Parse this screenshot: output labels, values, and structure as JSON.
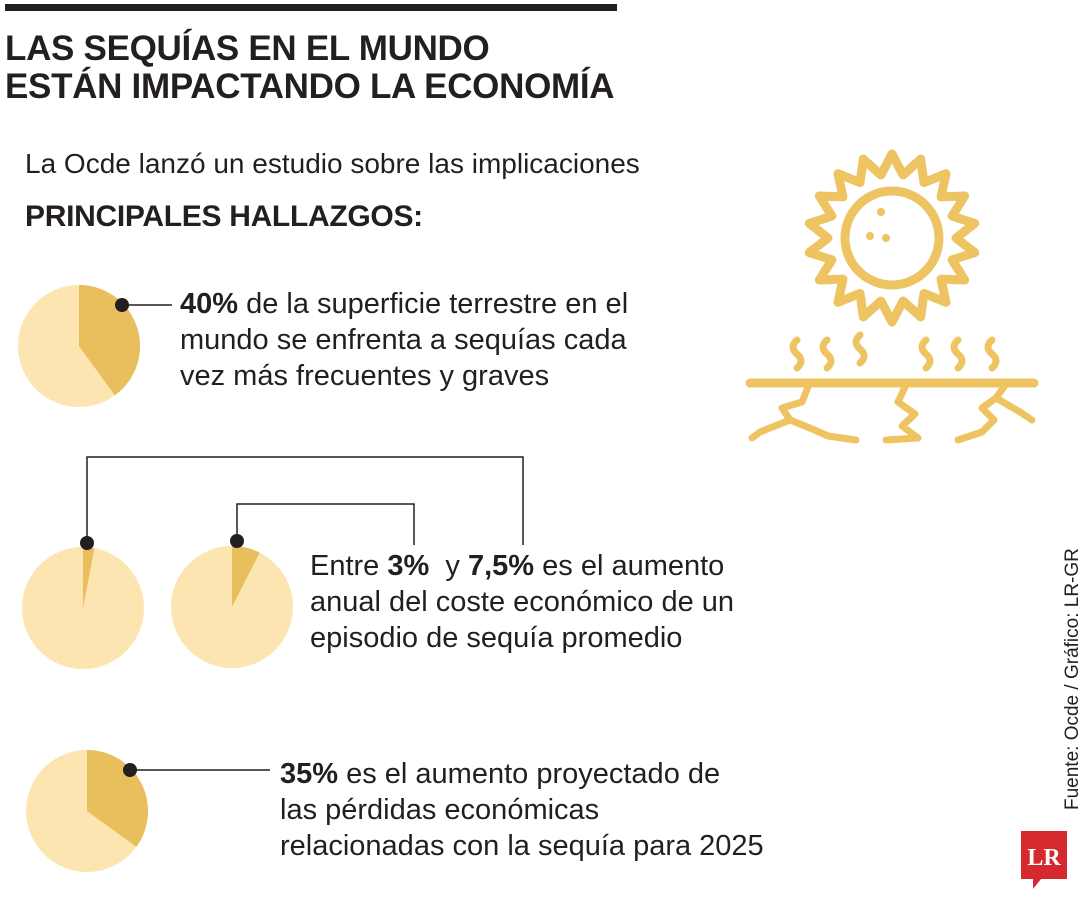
{
  "header": {
    "title_line1": "LAS SEQUÍAS EN EL MUNDO",
    "title_line2": "ESTÁN IMPACTANDO LA ECONOMÍA",
    "subtitle": "La Ocde lanzó un estudio sobre las implicaciones",
    "section_heading": "PRINCIPALES HALLAZGOS:"
  },
  "findings": [
    {
      "highlight": "40%",
      "text_line1": " de la superficie terrestre en el",
      "text_line2": "mundo se enfrenta a sequías cada",
      "text_line3": "vez más frecuentes y graves"
    },
    {
      "prefix": "Entre ",
      "highlight_a": "3%",
      "middle": "  y ",
      "highlight_b": "7,5%",
      "text_line1": " es el aumento",
      "text_line2": "anual del coste económico de un",
      "text_line3": "episodio de sequía promedio"
    },
    {
      "highlight": "35%",
      "text_line1": " es el aumento proyectado de",
      "text_line2": "las pérdidas económicas",
      "text_line3": "relacionadas con la sequía para 2025"
    }
  ],
  "chart_data": [
    {
      "type": "pie",
      "values": [
        40,
        60
      ]
    },
    {
      "type": "pie",
      "values": [
        3,
        97
      ]
    },
    {
      "type": "pie",
      "values": [
        7.5,
        92.5
      ]
    },
    {
      "type": "pie",
      "values": [
        35,
        65
      ]
    }
  ],
  "colors": {
    "highlight": "#e8bf5c",
    "rest": "#fde5b1",
    "ink": "#231f20",
    "brand": "#d42a2f",
    "icon": "#eec462"
  },
  "icon": "sun-drought-icon",
  "source": "Fuente: Ocde / Gráfico: LR-GR",
  "logo": {
    "text": "LR"
  }
}
